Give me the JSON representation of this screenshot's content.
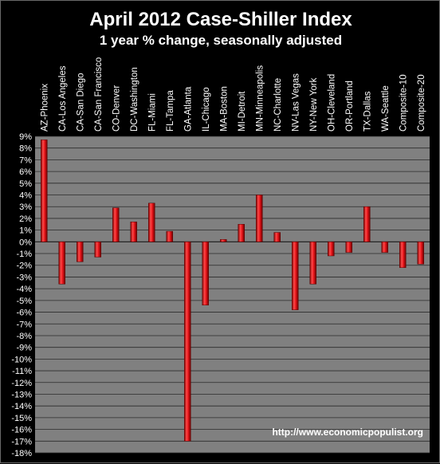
{
  "chart_data": {
    "type": "bar",
    "title": "April 2012 Case-Shiller Index",
    "subtitle": "1 year % change, seasonally adjusted",
    "categories": [
      "AZ-Phoenix",
      "CA-Los Angeles",
      "CA-San Diego",
      "CA-San Francisco",
      "CO-Denver",
      "DC-Washington",
      "FL-Miami",
      "FL-Tampa",
      "GA-Atlanta",
      "IL-Chicago",
      "MA-Boston",
      "MI-Detroit",
      "MN-Minneapolis",
      "NC-Charlotte",
      "NV-Las Vegas",
      "NY-New York",
      "OH-Cleveland",
      "OR-Portland",
      "TX-Dallas",
      "WA-Seattle",
      "Composite-10",
      "Composite-20"
    ],
    "values": [
      8.7,
      -3.6,
      -1.7,
      -1.3,
      2.9,
      1.7,
      3.3,
      0.9,
      -17.0,
      -5.4,
      0.2,
      1.5,
      4.0,
      0.8,
      -5.8,
      -3.6,
      -1.2,
      -0.9,
      3.0,
      -0.9,
      -2.2,
      -1.9
    ],
    "y_tick_labels": [
      "9%",
      "8%",
      "7%",
      "6%",
      "5%",
      "4%",
      "3%",
      "2%",
      "1%",
      "0%",
      "-1%",
      "-2%",
      "-3%",
      "-4%",
      "-5%",
      "-6%",
      "-7%",
      "-8%",
      "-9%",
      "-10%",
      "-11%",
      "-12%",
      "-13%",
      "-14%",
      "-15%",
      "-16%",
      "-17%",
      "-18%"
    ],
    "ylim": [
      -18,
      9
    ],
    "grid": true,
    "bar_color": "#e8141a",
    "background_color": "#808080",
    "source_text": "http://www.economicpopulist.org"
  }
}
